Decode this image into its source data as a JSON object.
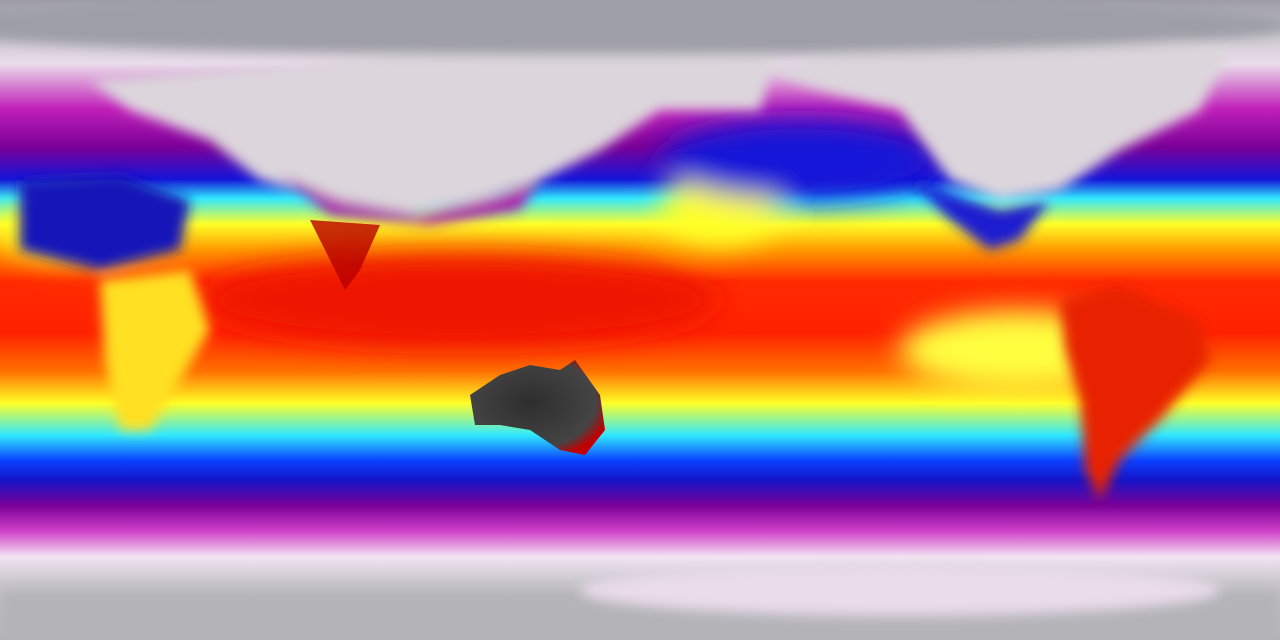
{
  "map": {
    "projection": "equirectangular",
    "variable_palette": [
      "#c0c0c4",
      "#f3e6f3",
      "#d020c0",
      "#8a00a0",
      "#1010d8",
      "#0070ff",
      "#30f0ff",
      "#ffff20",
      "#ffa000",
      "#ff3000",
      "#d00000",
      "#303030"
    ],
    "colors": {
      "polar_gray": "#b8b8bc",
      "ice_white": "#ecdcec",
      "magenta": "#c818b8",
      "purple": "#7a0098",
      "blue": "#1414d8",
      "cyan": "#30e8ff",
      "yellow": "#ffff28",
      "orange": "#ff9a00",
      "red": "#ff2a00",
      "dark_red": "#b80000",
      "australia_dark": "#383838",
      "continent_gray": "#d8d4d8"
    }
  }
}
